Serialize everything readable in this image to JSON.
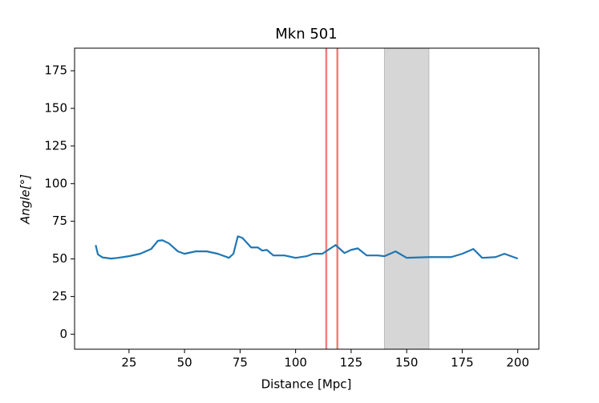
{
  "chart_data": {
    "type": "line",
    "title": "Mkn 501",
    "xlabel": "Distance [Mpc]",
    "ylabel": "Angle[°]",
    "x": [
      10,
      11,
      13,
      17,
      20,
      25,
      30,
      35,
      38,
      40,
      43,
      47,
      50,
      55,
      60,
      65,
      70,
      72,
      74,
      76,
      80,
      83,
      85,
      87,
      90,
      95,
      100,
      105,
      108,
      112,
      118,
      122,
      125,
      128,
      132,
      137,
      140,
      145,
      150,
      160,
      170,
      175,
      180,
      184,
      190,
      194,
      197,
      200
    ],
    "series": [
      {
        "name": "Angle",
        "color": "#1f77b4",
        "values": [
          59.2,
          53,
          51,
          50.2,
          50.7,
          51.8,
          53.4,
          56.6,
          62,
          62.4,
          60.3,
          55,
          53.4,
          55,
          55,
          53.4,
          50.7,
          53.4,
          65,
          64,
          57.6,
          57.6,
          55.5,
          56,
          52.3,
          52.3,
          50.7,
          51.8,
          53.4,
          53.4,
          59.2,
          53.9,
          56,
          57,
          52.3,
          52.3,
          51.8,
          55,
          50.7,
          51.2,
          51.2,
          53.4,
          56.6,
          50.7,
          51.2,
          53.4,
          51.8,
          50.2
        ]
      }
    ],
    "vlines": [
      113.8,
      118.8
    ],
    "vline_color": "#f08080",
    "span": [
      140,
      160
    ],
    "span_color": "#d6d6d6",
    "xlim": [
      0.5,
      209.5
    ],
    "ylim": [
      -10,
      190
    ],
    "xticks": [
      25,
      50,
      75,
      100,
      125,
      150,
      175,
      200
    ],
    "yticks": [
      0,
      25,
      50,
      75,
      100,
      125,
      150,
      175
    ]
  }
}
